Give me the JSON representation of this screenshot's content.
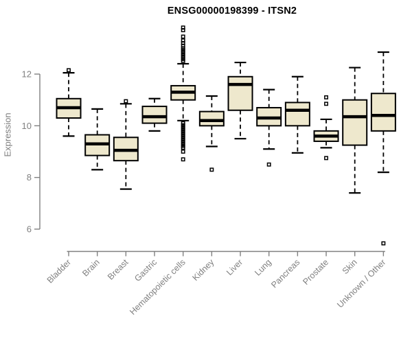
{
  "chart_data": {
    "type": "boxplot",
    "title": "ENSG00000198399 - ITSN2",
    "ylabel": "Expression",
    "xlabel": "",
    "ylim": [
      6,
      12
    ],
    "yticks": [
      6,
      8,
      10,
      12
    ],
    "grid": false,
    "legend": "none",
    "box_fill": "#EEE8CD",
    "box_stroke": "#000000",
    "axis_color": "#808080",
    "categories": [
      "Bladder",
      "Brain",
      "Breast",
      "Gastric",
      "Hematopoietic cells",
      "Kidney",
      "Liver",
      "Lung",
      "Pancreas",
      "Prostate",
      "Skin",
      "Unknown / Other"
    ],
    "series": [
      {
        "name": "Bladder",
        "low": 9.6,
        "q1": 10.3,
        "median": 10.7,
        "q3": 11.05,
        "high": 12.05,
        "outliers": [
          12.15
        ]
      },
      {
        "name": "Brain",
        "low": 8.3,
        "q1": 8.85,
        "median": 9.3,
        "q3": 9.65,
        "high": 10.65,
        "outliers": []
      },
      {
        "name": "Breast",
        "low": 7.55,
        "q1": 8.65,
        "median": 9.05,
        "q3": 9.55,
        "high": 10.85,
        "outliers": [
          10.95
        ]
      },
      {
        "name": "Gastric",
        "low": 9.8,
        "q1": 10.1,
        "median": 10.35,
        "q3": 10.75,
        "high": 11.05,
        "outliers": []
      },
      {
        "name": "Hematopoietic cells",
        "low": 10.2,
        "q1": 11.0,
        "median": 11.3,
        "q3": 11.55,
        "high": 12.4,
        "outliers": [
          13.8,
          13.7,
          13.45,
          13.3,
          13.2,
          13.1,
          13.0,
          12.93,
          12.86,
          12.79,
          12.72,
          12.65,
          12.58,
          12.51,
          10.1,
          10.02,
          9.94,
          9.86,
          9.78,
          9.7,
          9.62,
          9.54,
          9.46,
          9.38,
          9.3,
          9.22,
          9.15,
          9.0,
          8.7
        ]
      },
      {
        "name": "Kidney",
        "low": 9.2,
        "q1": 10.0,
        "median": 10.2,
        "q3": 10.55,
        "high": 11.15,
        "outliers": [
          8.3
        ]
      },
      {
        "name": "Liver",
        "low": 9.5,
        "q1": 10.6,
        "median": 11.6,
        "q3": 11.9,
        "high": 12.45,
        "outliers": []
      },
      {
        "name": "Lung",
        "low": 9.1,
        "q1": 10.0,
        "median": 10.3,
        "q3": 10.7,
        "high": 11.4,
        "outliers": [
          8.5
        ]
      },
      {
        "name": "Pancreas",
        "low": 8.95,
        "q1": 10.0,
        "median": 10.6,
        "q3": 10.9,
        "high": 11.9,
        "outliers": []
      },
      {
        "name": "Prostate",
        "low": 9.15,
        "q1": 9.4,
        "median": 9.6,
        "q3": 9.8,
        "high": 10.25,
        "outliers": [
          11.1,
          10.85,
          8.75
        ]
      },
      {
        "name": "Skin",
        "low": 7.4,
        "q1": 9.25,
        "median": 10.35,
        "q3": 11.0,
        "high": 12.25,
        "outliers": []
      },
      {
        "name": "Unknown / Other",
        "low": 8.2,
        "q1": 9.8,
        "median": 10.4,
        "q3": 11.25,
        "high": 12.85,
        "outliers": [
          5.45
        ]
      }
    ]
  }
}
